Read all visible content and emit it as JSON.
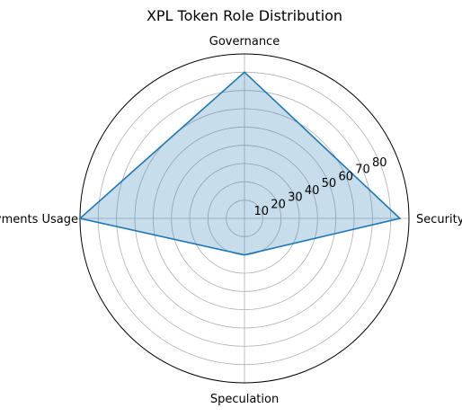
{
  "chart_data": {
    "type": "radar",
    "title": "XPL Token Role Distribution",
    "categories": [
      "Security",
      "Governance",
      "Payments Usage",
      "Speculation"
    ],
    "series": [
      {
        "values": [
          85,
          80,
          90,
          20
        ],
        "color": "#1f77b4",
        "fill_color": "#1f77b4",
        "fill_opacity": 0.25
      }
    ],
    "radial_ticks": [
      10,
      20,
      30,
      40,
      50,
      60,
      70,
      80
    ],
    "rlim": [
      0,
      90
    ],
    "grid": true,
    "legend": "none"
  }
}
